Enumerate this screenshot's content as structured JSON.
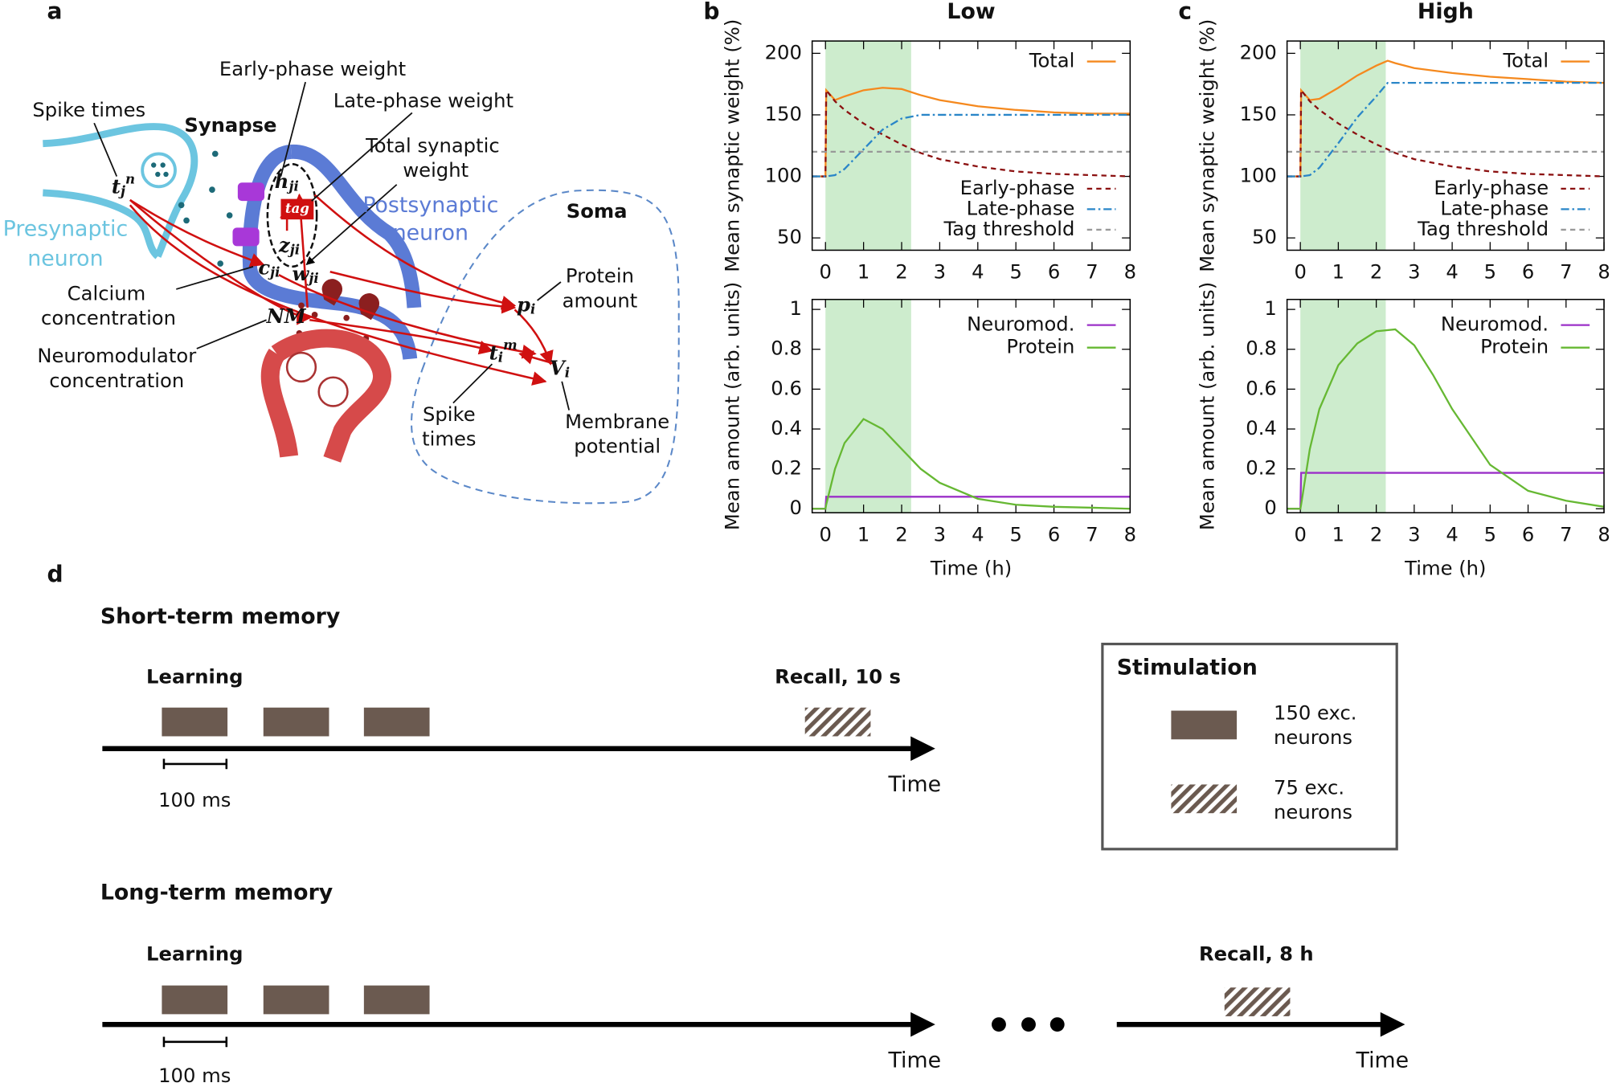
{
  "panel_a": {
    "letter": "a",
    "early_weight": "Early-phase weight",
    "late_weight": "Late-phase weight",
    "spike_times_pre": "Spike times",
    "synapse": "Synapse",
    "total_weight": [
      "Total synaptic",
      "weight"
    ],
    "postsynaptic": [
      "Postsynaptic",
      "neuron"
    ],
    "soma": "Soma",
    "presynaptic": [
      "Presynaptic",
      "neuron"
    ],
    "calcium": [
      "Calcium",
      "concentration"
    ],
    "protein": [
      "Protein",
      "amount"
    ],
    "neuromodulator": [
      "Neuromodulator",
      "concentration"
    ],
    "spike_times_post": [
      "Spike",
      "times"
    ],
    "membrane": [
      "Membrane",
      "potential"
    ],
    "symbols": {
      "t_pre": {
        "base": "t",
        "sub": "j",
        "sup": "n"
      },
      "h": {
        "base": "h",
        "sub": "ji"
      },
      "tag": "tag",
      "z": {
        "base": "z",
        "sub": "ji"
      },
      "c": {
        "base": "c",
        "sub": "ji"
      },
      "w": {
        "base": "w",
        "sub": "ji"
      },
      "p": {
        "base": "p",
        "sub": "i"
      },
      "nm": "NM",
      "t_post": {
        "base": "t",
        "sub": "i",
        "sup": "m"
      },
      "v": {
        "base": "V",
        "sub": "i"
      }
    }
  },
  "panel_b": "b",
  "panel_c": "c",
  "chart_data": [
    {
      "type": "line",
      "title": "Low",
      "ylabel": "Mean synaptic weight (%)",
      "x": [
        -0.35,
        0,
        0.02,
        0.25,
        0.5,
        1,
        1.5,
        2,
        2.5,
        3,
        4,
        5,
        6,
        7,
        8
      ],
      "highlight": [
        0,
        2.25
      ],
      "highlight_color": "#cdeccd",
      "xlim": [
        -0.35,
        8
      ],
      "ylim": [
        40,
        210
      ],
      "xticks": [
        0,
        1,
        2,
        3,
        4,
        5,
        6,
        7,
        8
      ],
      "yticks": [
        50,
        100,
        150,
        200
      ],
      "series": [
        {
          "name": "Total",
          "color": "#f5891e",
          "style": "solid",
          "values": [
            100,
            100,
            170,
            162,
            165,
            170,
            172,
            171,
            166,
            162,
            157,
            154,
            152,
            151,
            151
          ]
        },
        {
          "name": "Early-phase",
          "color": "#8b1010",
          "style": "dashed",
          "values": [
            100,
            100,
            170,
            161,
            154,
            143,
            134,
            126,
            119,
            114,
            108,
            104,
            102,
            101,
            100
          ]
        },
        {
          "name": "Late-phase",
          "color": "#2a86c8",
          "style": "dash-dot",
          "values": [
            100,
            100,
            100,
            101,
            106,
            122,
            138,
            147,
            150,
            150,
            150,
            150,
            150,
            150,
            150
          ]
        },
        {
          "name": "Tag threshold",
          "color": "#999999",
          "style": "dashed",
          "values": [
            120,
            120,
            120,
            120,
            120,
            120,
            120,
            120,
            120,
            120,
            120,
            120,
            120,
            120,
            120
          ]
        }
      ]
    },
    {
      "type": "line",
      "ylabel": "Mean amount (arb. units)",
      "xlabel": "Time (h)",
      "x": [
        -0.35,
        0,
        0.02,
        0.25,
        0.5,
        1,
        1.5,
        2,
        2.5,
        3,
        4,
        5,
        6,
        7,
        8
      ],
      "highlight": [
        0,
        2.25
      ],
      "highlight_color": "#cdeccd",
      "xlim": [
        -0.35,
        8
      ],
      "ylim": [
        -0.02,
        1.05
      ],
      "xticks": [
        0,
        1,
        2,
        3,
        4,
        5,
        6,
        7,
        8
      ],
      "yticks": [
        0,
        0.2,
        0.4,
        0.6,
        0.8,
        1
      ],
      "series": [
        {
          "name": "Neuromod.",
          "color": "#9b30c8",
          "style": "solid",
          "values": [
            0,
            0,
            0.06,
            0.06,
            0.06,
            0.06,
            0.06,
            0.06,
            0.06,
            0.06,
            0.06,
            0.06,
            0.06,
            0.06,
            0.06
          ]
        },
        {
          "name": "Protein",
          "color": "#66b833",
          "style": "solid",
          "values": [
            0,
            0,
            0.02,
            0.2,
            0.33,
            0.45,
            0.4,
            0.3,
            0.2,
            0.13,
            0.05,
            0.02,
            0.01,
            0.005,
            0
          ]
        }
      ]
    },
    {
      "type": "line",
      "title": "High",
      "ylabel": "Mean synaptic weight (%)",
      "x": [
        -0.35,
        0,
        0.02,
        0.25,
        0.5,
        1,
        1.5,
        2,
        2.3,
        2.5,
        3,
        4,
        5,
        6,
        7,
        8
      ],
      "highlight": [
        0,
        2.25
      ],
      "highlight_color": "#cdeccd",
      "xlim": [
        -0.35,
        8
      ],
      "ylim": [
        40,
        210
      ],
      "xticks": [
        0,
        1,
        2,
        3,
        4,
        5,
        6,
        7,
        8
      ],
      "yticks": [
        50,
        100,
        150,
        200
      ],
      "series": [
        {
          "name": "Total",
          "color": "#f5891e",
          "style": "solid",
          "values": [
            100,
            100,
            170,
            162,
            163,
            172,
            182,
            190,
            194,
            192,
            188,
            184,
            181,
            179,
            177,
            176
          ]
        },
        {
          "name": "Early-phase",
          "color": "#8b1010",
          "style": "dashed",
          "values": [
            100,
            100,
            170,
            161,
            154,
            143,
            134,
            126,
            122,
            119,
            114,
            108,
            104,
            102,
            101,
            100
          ]
        },
        {
          "name": "Late-phase",
          "color": "#2a86c8",
          "style": "dash-dot",
          "values": [
            100,
            100,
            100,
            101,
            107,
            127,
            148,
            165,
            176,
            176,
            176,
            176,
            176,
            176,
            176,
            176
          ]
        },
        {
          "name": "Tag threshold",
          "color": "#999999",
          "style": "dashed",
          "values": [
            120,
            120,
            120,
            120,
            120,
            120,
            120,
            120,
            120,
            120,
            120,
            120,
            120,
            120,
            120,
            120
          ]
        }
      ]
    },
    {
      "type": "line",
      "ylabel": "Mean amount (arb. units)",
      "xlabel": "Time (h)",
      "x": [
        -0.35,
        0,
        0.02,
        0.25,
        0.5,
        1,
        1.5,
        2,
        2.5,
        3,
        3.5,
        4,
        5,
        6,
        7,
        8
      ],
      "highlight": [
        0,
        2.25
      ],
      "highlight_color": "#cdeccd",
      "xlim": [
        -0.35,
        8
      ],
      "ylim": [
        -0.02,
        1.05
      ],
      "xticks": [
        0,
        1,
        2,
        3,
        4,
        5,
        6,
        7,
        8
      ],
      "yticks": [
        0,
        0.2,
        0.4,
        0.6,
        0.8,
        1
      ],
      "series": [
        {
          "name": "Neuromod.",
          "color": "#9b30c8",
          "style": "solid",
          "values": [
            0,
            0,
            0.18,
            0.18,
            0.18,
            0.18,
            0.18,
            0.18,
            0.18,
            0.18,
            0.18,
            0.18,
            0.18,
            0.18,
            0.18,
            0.18
          ]
        },
        {
          "name": "Protein",
          "color": "#66b833",
          "style": "solid",
          "values": [
            0,
            0,
            0.02,
            0.3,
            0.5,
            0.72,
            0.83,
            0.89,
            0.9,
            0.82,
            0.67,
            0.5,
            0.22,
            0.09,
            0.04,
            0.01
          ]
        }
      ]
    }
  ],
  "panel_d": {
    "letter": "d",
    "short_term": {
      "title": "Short-term memory",
      "learning": "Learning",
      "recall": "Recall, 10 s",
      "scale": "100 ms",
      "axis": "Time"
    },
    "long_term": {
      "title": "Long-term memory",
      "learning": "Learning",
      "recall": "Recall, 8 h",
      "scale": "100 ms",
      "axis": [
        "Time",
        "Time"
      ]
    },
    "legend": {
      "title": "Stimulation",
      "full": [
        "150 exc.",
        "neurons"
      ],
      "half": [
        "75 exc.",
        "neurons"
      ]
    }
  }
}
